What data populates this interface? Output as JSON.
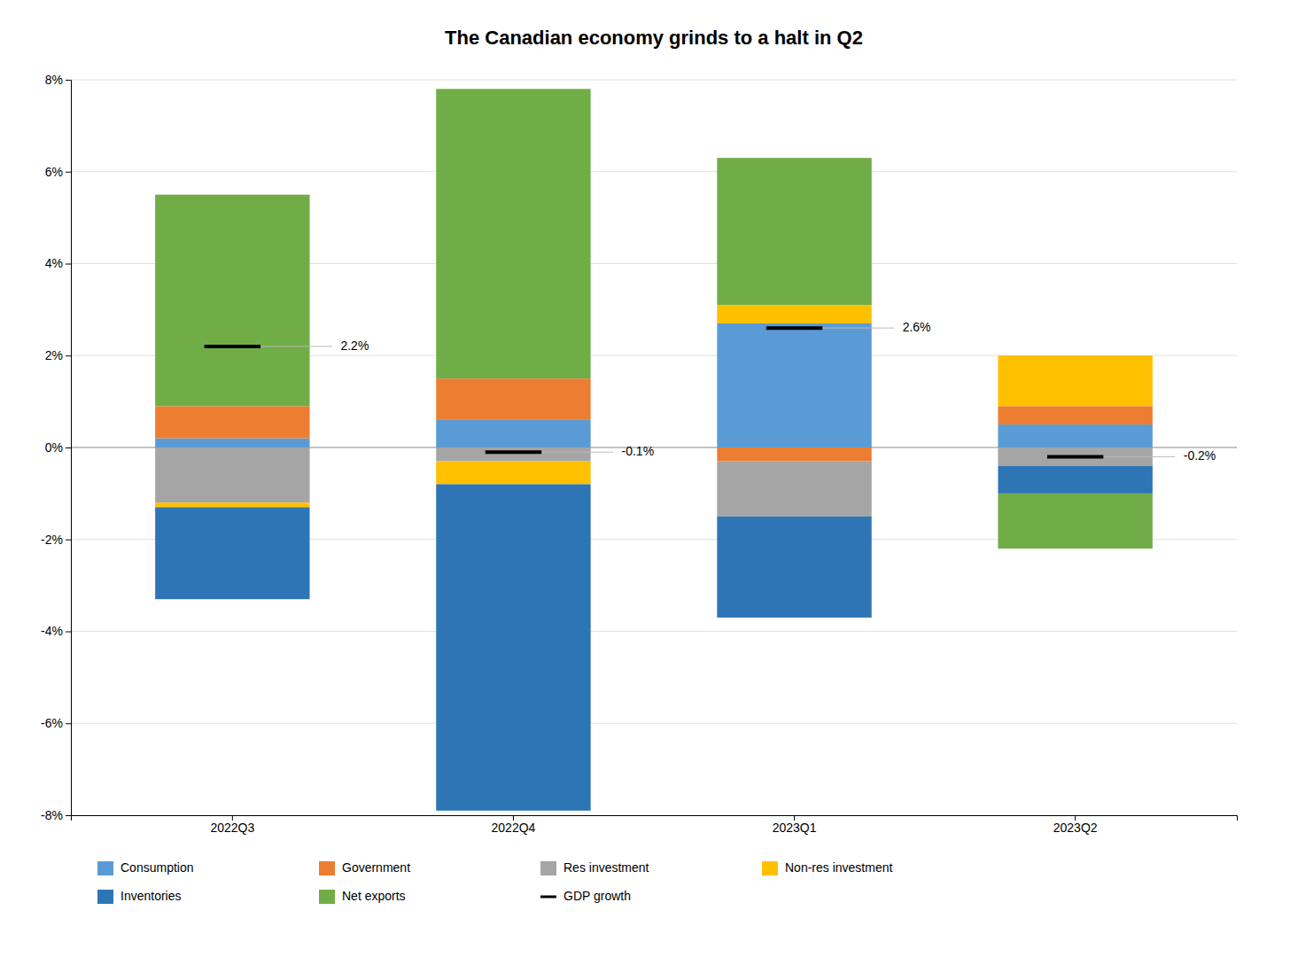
{
  "chart_data": {
    "type": "bar",
    "stacked": true,
    "title": "The Canadian economy grinds to a halt in Q2",
    "categories": [
      "2022Q3",
      "2022Q4",
      "2023Q1",
      "2023Q2"
    ],
    "series": [
      {
        "name": "Consumption",
        "color": "#5B9BD5",
        "values": [
          0.2,
          0.6,
          2.7,
          0.5
        ]
      },
      {
        "name": "Government",
        "color": "#ED7D31",
        "values": [
          0.7,
          0.9,
          -0.3,
          0.4
        ]
      },
      {
        "name": "Res investment",
        "color": "#A5A5A5",
        "values": [
          -1.2,
          -0.3,
          -1.2,
          -0.4
        ]
      },
      {
        "name": "Non-res investment",
        "color": "#FFC000",
        "values": [
          -0.1,
          -0.5,
          0.4,
          1.1
        ]
      },
      {
        "name": "Inventories",
        "color": "#2E75B6",
        "values": [
          -2.0,
          -7.1,
          -2.2,
          -0.6
        ]
      },
      {
        "name": "Net exports",
        "color": "#70AD47",
        "values": [
          4.6,
          6.3,
          3.2,
          -1.2
        ]
      },
      {
        "name": "GDP growth",
        "type": "scatter",
        "marker": "dash",
        "color": "#000000",
        "data_labels": true,
        "values": [
          2.2,
          -0.1,
          2.6,
          -0.2
        ],
        "value_labels": [
          "2.2%",
          "-0.1%",
          "2.6%",
          "-0.2%"
        ]
      }
    ],
    "ylim": [
      -8,
      8
    ],
    "yticks": [
      {
        "value": -8,
        "label": "-8%"
      },
      {
        "value": -6,
        "label": "-6%"
      },
      {
        "value": -4,
        "label": "-4%"
      },
      {
        "value": -2,
        "label": "-2%"
      },
      {
        "value": 0,
        "label": "0%"
      },
      {
        "value": 2,
        "label": "2%"
      },
      {
        "value": 4,
        "label": "4%"
      },
      {
        "value": 6,
        "label": "6%"
      },
      {
        "value": 8,
        "label": "8%"
      }
    ],
    "grid": true,
    "legend": "bottom"
  }
}
